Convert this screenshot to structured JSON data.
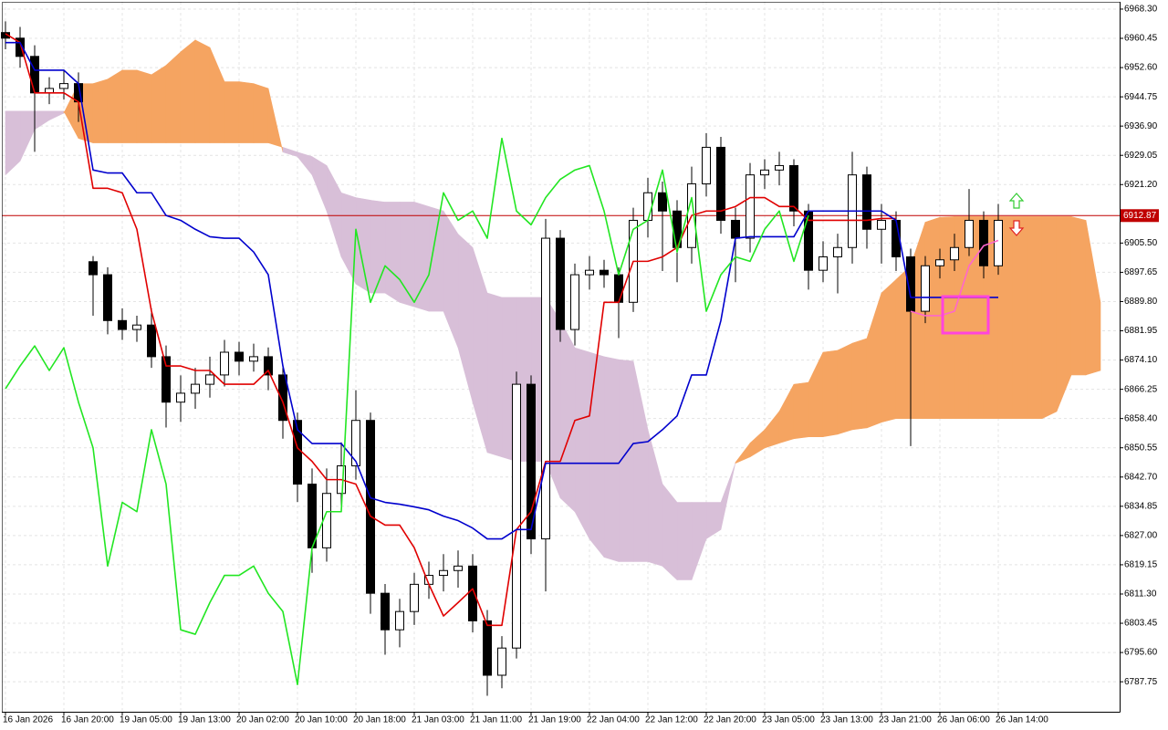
{
  "chart_data": {
    "type": "candlestick",
    "categories": [
      "16 Jan 2026",
      null,
      null,
      null,
      "16 Jan 20:00",
      null,
      null,
      null,
      "19 Jan 05:00",
      null,
      null,
      null,
      "19 Jan 13:00",
      null,
      null,
      null,
      "20 Jan 02:00",
      null,
      null,
      null,
      "20 Jan 10:00",
      null,
      null,
      null,
      "20 Jan 18:00",
      null,
      null,
      null,
      "21 Jan 03:00",
      null,
      null,
      null,
      "21 Jan 11:00",
      null,
      null,
      null,
      "21 Jan 19:00",
      null,
      null,
      null,
      "22 Jan 04:00",
      null,
      null,
      null,
      "22 Jan 12:00",
      null,
      null,
      null,
      "22 Jan 20:00",
      null,
      null,
      null,
      "23 Jan 05:00",
      null,
      null,
      null,
      "23 Jan 13:00",
      null,
      null,
      null,
      "23 Jan 21:00",
      null,
      null,
      null,
      "26 Jan 06:00",
      null,
      null,
      null,
      "26 Jan 14:00",
      null,
      null,
      null,
      null,
      null,
      null,
      null
    ],
    "open": [
      6962.0,
      6960.5,
      6955.6,
      6945.8,
      6947.0,
      6948.3,
      6900.5,
      6897.0,
      6884.7,
      6882.3,
      6883.5,
      6875.0,
      6862.8,
      6865.2,
      6867.6,
      6870.1,
      6876.2,
      6873.8,
      6875.0,
      6870.1,
      6857.9,
      6840.8,
      6823.7,
      6838.3,
      6845.7,
      6857.9,
      6811.5,
      6801.7,
      6806.6,
      6813.9,
      6816.3,
      6817.6,
      6818.8,
      6804.1,
      6789.5,
      6796.8,
      6867.6,
      6826.1,
      6906.8,
      6882.3,
      6897.0,
      6898.2,
      6897.0,
      6889.6,
      6911.6,
      6919.0,
      6914.1,
      6904.3,
      6921.4,
      6931.2,
      6911.6,
      6906.8,
      6923.8,
      6925.1,
      6926.3,
      6914.1,
      6898.2,
      6901.8,
      6904.3,
      6923.8,
      6909.2,
      6911.6,
      6901.8,
      6887.2,
      6899.4,
      6901.0,
      6904.3,
      6911.6,
      6899.4,
      null,
      null,
      null,
      null,
      null,
      null,
      null
    ],
    "high": [
      6965.0,
      6963.5,
      6958.6,
      6950.0,
      6952.0,
      6951.3,
      6902.0,
      6899.0,
      6888.0,
      6886.0,
      6888.0,
      6878.0,
      6870.0,
      6872.0,
      6875.0,
      6879.5,
      6879.0,
      6878.5,
      6877.5,
      6872.5,
      6860.0,
      6845.0,
      6845.0,
      6852.0,
      6866.0,
      6860.0,
      6814.0,
      6810.0,
      6817.0,
      6820.0,
      6822.0,
      6823.0,
      6822.0,
      6807.0,
      6800.0,
      6871.0,
      6870.0,
      6912.0,
      6909.0,
      6900.0,
      6902.0,
      6901.0,
      6899.0,
      6915.0,
      6923.0,
      6922.0,
      6917.0,
      6926.0,
      6935.0,
      6934.0,
      6915.0,
      6927.0,
      6928.0,
      6930.0,
      6928.0,
      6916.0,
      6906.0,
      6908.0,
      6930.0,
      6926.0,
      6916.0,
      6914.0,
      6904.0,
      6902.0,
      6904.0,
      6908.0,
      6920.0,
      6914.0,
      6916.0,
      null,
      null,
      null,
      null,
      null,
      null,
      null
    ],
    "low": [
      6957.5,
      6952.6,
      6930.0,
      6942.8,
      6944.0,
      6938.0,
      6886.0,
      6881.0,
      6879.5,
      6879.0,
      6872.0,
      6856.0,
      6857.5,
      6861.0,
      6864.0,
      6867.0,
      6870.0,
      6871.0,
      6866.0,
      6853.0,
      6836.0,
      6817.0,
      6820.0,
      6834.0,
      6842.0,
      6806.0,
      6795.0,
      6797.0,
      6803.0,
      6810.0,
      6812.0,
      6813.0,
      6801.0,
      6784.0,
      6786.0,
      6794.0,
      6822.0,
      6812.0,
      6879.0,
      6878.0,
      6893.0,
      6893.5,
      6880.0,
      6887.0,
      6907.0,
      6898.0,
      6895.0,
      6900.0,
      6918.0,
      6908.0,
      6895.0,
      6903.0,
      6920.0,
      6921.0,
      6910.0,
      6893.0,
      6895.0,
      6892.0,
      6900.0,
      6904.0,
      6900.0,
      6898.0,
      6851.0,
      6884.0,
      6896.0,
      6898.0,
      6902.0,
      6896.0,
      6897.0,
      null,
      null,
      null,
      null,
      null,
      null,
      null
    ],
    "close": [
      6960.5,
      6955.6,
      6945.8,
      6947.0,
      6948.3,
      6943.4,
      6897.0,
      6884.7,
      6882.3,
      6883.5,
      6875.0,
      6862.8,
      6865.2,
      6867.6,
      6870.1,
      6876.2,
      6873.8,
      6875.0,
      6870.1,
      6857.9,
      6840.8,
      6823.7,
      6838.3,
      6845.7,
      6857.9,
      6811.5,
      6801.7,
      6806.6,
      6813.9,
      6816.3,
      6817.6,
      6818.8,
      6804.1,
      6789.5,
      6796.8,
      6867.6,
      6826.1,
      6906.8,
      6882.3,
      6897.0,
      6898.2,
      6897.0,
      6889.6,
      6911.6,
      6919.0,
      6914.1,
      6904.3,
      6921.4,
      6931.2,
      6911.6,
      6906.8,
      6923.8,
      6925.1,
      6926.3,
      6914.1,
      6898.2,
      6901.8,
      6904.3,
      6923.8,
      6909.2,
      6911.6,
      6901.8,
      6887.2,
      6899.4,
      6901.0,
      6904.3,
      6911.6,
      6899.4,
      6911.6,
      null,
      null,
      null,
      null,
      null,
      null,
      null
    ],
    "up_color": "#ffffff",
    "down_color": "#000000",
    "cloud": {
      "bull_color": "#f5a461",
      "bear_color": "#d8bfd8",
      "span_a": [
        6923.8,
        6927.5,
        6936.0,
        6938.5,
        6940.4,
        6948.3,
        6948.3,
        6949.5,
        6951.9,
        6951.9,
        6950.7,
        6953.2,
        6956.8,
        6960.0,
        6958.0,
        6948.8,
        6948.8,
        6948.3,
        6947.0,
        6929.9,
        6928.7,
        6923.8,
        6914.1,
        6901.8,
        6894.5,
        6892.1,
        6892.1,
        6889.6,
        6888.4,
        6887.2,
        6887.2,
        6877.4,
        6862.8,
        6849.3,
        6848.1,
        6846.9,
        6846.9,
        6846.9,
        6837.1,
        6833.4,
        6826.1,
        6821.2,
        6820.0,
        6820.0,
        6820.0,
        6818.8,
        6815.1,
        6815.1,
        6826.1,
        6828.6,
        6846.6,
        6851.8,
        6855.4,
        6860.3,
        6867.6,
        6868.1,
        6876.2,
        6876.7,
        6878.6,
        6879.9,
        6892.1,
        6895.7,
        6899.4,
        6911.1,
        6912.4,
        6912.6,
        6912.6,
        6912.6,
        6912.6,
        6912.6,
        6912.6,
        6912.6,
        6912.6,
        6912.6,
        6911.6,
        6889.6
      ],
      "span_b": [
        6940.9,
        6940.9,
        6940.9,
        6940.9,
        6940.9,
        6933.6,
        6932.4,
        6932.4,
        6932.4,
        6932.4,
        6932.4,
        6932.4,
        6932.4,
        6932.4,
        6932.4,
        6932.4,
        6932.4,
        6932.4,
        6932.4,
        6931.2,
        6929.9,
        6928.7,
        6926.3,
        6919.0,
        6917.7,
        6917.0,
        6916.5,
        6916.5,
        6916.5,
        6915.3,
        6914.1,
        6907.9,
        6904.3,
        6892.1,
        6890.9,
        6890.9,
        6890.9,
        6890.9,
        6884.7,
        6877.4,
        6876.2,
        6875.0,
        6874.2,
        6873.8,
        6855.4,
        6840.8,
        6835.9,
        6835.9,
        6835.9,
        6835.9,
        6846.4,
        6848.1,
        6850.5,
        6851.8,
        6853.0,
        6853.5,
        6853.5,
        6854.2,
        6855.4,
        6855.9,
        6857.4,
        6858.4,
        6858.4,
        6858.4,
        6858.4,
        6858.4,
        6858.4,
        6858.4,
        6858.4,
        6858.4,
        6858.4,
        6858.4,
        6860.3,
        6870.1,
        6870.1,
        6871.3
      ]
    },
    "lines": [
      {
        "color": "#e00000",
        "values": [
          6961.7,
          6959.3,
          6945.8,
          6945.8,
          6945.8,
          6943.4,
          6920.2,
          6920.2,
          6919.0,
          6909.2,
          6887.2,
          6872.5,
          6872.5,
          6871.3,
          6871.3,
          6867.6,
          6867.6,
          6867.6,
          6871.3,
          6862.8,
          6850.5,
          6846.9,
          6842.0,
          6842.0,
          6840.8,
          6832.2,
          6829.8,
          6829.8,
          6823.7,
          6813.9,
          6805.4,
          6809.0,
          6812.7,
          6802.9,
          6802.9,
          6828.6,
          6833.4,
          6846.9,
          6846.9,
          6857.9,
          6859.1,
          6889.6,
          6889.6,
          6900.6,
          6900.6,
          6901.8,
          6904.3,
          6912.9,
          6914.1,
          6914.1,
          6915.3,
          6917.7,
          6917.7,
          6915.3,
          6915.3,
          6911.6,
          6911.6,
          6911.6,
          6911.6,
          6911.6,
          6912.1,
          6912.1,
          null,
          null,
          null,
          null,
          null,
          null,
          null,
          null,
          null,
          null,
          null,
          null,
          null,
          null
        ]
      },
      {
        "color": "#0000cd",
        "values": [
          6959.3,
          6959.3,
          6951.9,
          6951.9,
          6951.9,
          6948.3,
          6925.1,
          6924.3,
          6924.3,
          6919.0,
          6919.0,
          6912.9,
          6911.6,
          6909.2,
          6907.2,
          6906.8,
          6906.8,
          6903.1,
          6897.0,
          6872.5,
          6855.4,
          6851.7,
          6851.7,
          6851.7,
          6846.9,
          6837.1,
          6835.9,
          6835.4,
          6834.7,
          6833.9,
          6832.2,
          6831.0,
          6829.0,
          6826.1,
          6826.1,
          6828.6,
          6828.6,
          6846.4,
          6846.4,
          6846.4,
          6846.4,
          6846.4,
          6846.4,
          6851.7,
          6852.2,
          6855.4,
          6859.1,
          6870.1,
          6870.1,
          6884.7,
          6906.8,
          6907.2,
          6907.2,
          6907.2,
          6907.2,
          6914.1,
          6914.1,
          6914.1,
          6914.1,
          6914.1,
          6914.1,
          6911.6,
          6890.9,
          6890.9,
          6890.9,
          6890.9,
          6890.9,
          6890.9,
          6890.9,
          null,
          null,
          null,
          null,
          null,
          null,
          null
        ]
      },
      {
        "color": "#22e622",
        "values": [
          6866.4,
          6872.5,
          6877.9,
          6871.3,
          6877.4,
          6862.8,
          6850.5,
          6818.8,
          6835.9,
          6833.4,
          6855.4,
          6840.8,
          6801.7,
          6800.5,
          6809.0,
          6816.3,
          6816.3,
          6818.8,
          6811.5,
          6806.6,
          6787.0,
          6823.7,
          6833.4,
          6833.4,
          6909.2,
          6889.6,
          6899.4,
          6895.7,
          6889.6,
          6897.0,
          6919.0,
          6911.6,
          6914.1,
          6906.8,
          6933.6,
          6914.1,
          6910.4,
          6917.7,
          6922.6,
          6925.1,
          6926.3,
          6914.1,
          6897.0,
          6909.2,
          6911.6,
          6925.1,
          6903.1,
          6917.7,
          6887.2,
          6897.0,
          6901.8,
          6900.6,
          6909.2,
          6914.1,
          6900.6,
          6912.9,
          null,
          null,
          null,
          null,
          null,
          null,
          null,
          null,
          null,
          null,
          null,
          null,
          null,
          null,
          null,
          null,
          null,
          null,
          null,
          null
        ]
      },
      {
        "color": "#ff66cc",
        "values": [
          null,
          null,
          null,
          null,
          null,
          null,
          null,
          null,
          null,
          null,
          null,
          null,
          null,
          null,
          null,
          null,
          null,
          null,
          null,
          null,
          null,
          null,
          null,
          null,
          null,
          null,
          null,
          null,
          null,
          null,
          null,
          null,
          null,
          null,
          null,
          null,
          null,
          null,
          null,
          null,
          null,
          null,
          null,
          null,
          null,
          null,
          null,
          null,
          null,
          null,
          null,
          null,
          null,
          null,
          null,
          null,
          null,
          null,
          null,
          null,
          null,
          null,
          6887.2,
          6886.0,
          6886.0,
          6887.2,
          6899.4,
          6904.8,
          6906.2,
          null,
          null,
          null,
          null,
          null,
          null,
          null
        ]
      }
    ],
    "last_price": 6912.87,
    "last_price_color": "#c00000",
    "ylim": [
      6779.7,
      6970.25
    ],
    "yticks": [
      {
        "value": 6968.3,
        "label": "6968.30"
      },
      {
        "value": 6960.45,
        "label": "6960.45"
      },
      {
        "value": 6952.6,
        "label": "6952.60"
      },
      {
        "value": 6944.75,
        "label": "6944.75"
      },
      {
        "value": 6936.9,
        "label": "6936.90"
      },
      {
        "value": 6929.05,
        "label": "6929.05"
      },
      {
        "value": 6921.2,
        "label": "6921.20"
      },
      {
        "value": 6905.5,
        "label": "6905.50"
      },
      {
        "value": 6897.65,
        "label": "6897.65"
      },
      {
        "value": 6889.8,
        "label": "6889.80"
      },
      {
        "value": 6881.95,
        "label": "6881.95"
      },
      {
        "value": 6874.1,
        "label": "6874.10"
      },
      {
        "value": 6866.25,
        "label": "6866.25"
      },
      {
        "value": 6858.4,
        "label": "6858.40"
      },
      {
        "value": 6850.55,
        "label": "6850.55"
      },
      {
        "value": 6842.7,
        "label": "6842.70"
      },
      {
        "value": 6834.85,
        "label": "6834.85"
      },
      {
        "value": 6827,
        "label": "6827.00"
      },
      {
        "value": 6819.15,
        "label": "6819.15"
      },
      {
        "value": 6811.3,
        "label": "6811.30"
      },
      {
        "value": 6803.45,
        "label": "6803.45"
      },
      {
        "value": 6795.6,
        "label": "6795.60"
      },
      {
        "value": 6787.75,
        "label": "6787.75"
      }
    ],
    "grid": true
  }
}
